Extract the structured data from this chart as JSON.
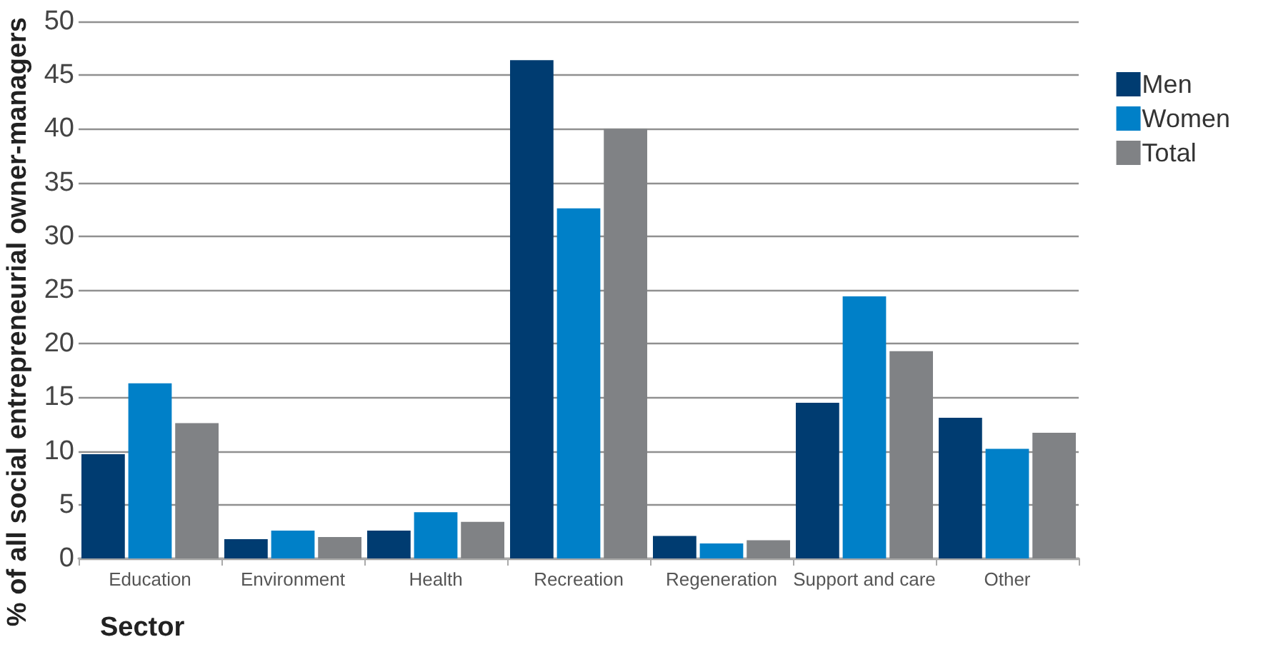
{
  "chart_data": {
    "type": "bar",
    "xlabel": "Sector",
    "ylabel": "% of all social entrepreneurial owner-managers",
    "categories": [
      "Education",
      "Environment",
      "Health",
      "Recreation",
      "Regeneration",
      "Support and care",
      "Other"
    ],
    "series": [
      {
        "name": "Men",
        "color": "#003c71",
        "values": [
          9.7,
          1.8,
          2.6,
          46.4,
          2.1,
          14.5,
          13.1
        ]
      },
      {
        "name": "Women",
        "color": "#0080c8",
        "values": [
          16.3,
          2.6,
          4.3,
          32.6,
          1.4,
          24.4,
          10.2
        ]
      },
      {
        "name": "Total",
        "color": "#808285",
        "values": [
          12.6,
          2.0,
          3.4,
          40.0,
          1.7,
          19.3,
          11.7
        ]
      }
    ],
    "ylim": [
      0,
      50
    ],
    "yticks": [
      0,
      5,
      10,
      15,
      20,
      25,
      30,
      35,
      40,
      45,
      50
    ],
    "grid": "y",
    "legend": "top right"
  }
}
